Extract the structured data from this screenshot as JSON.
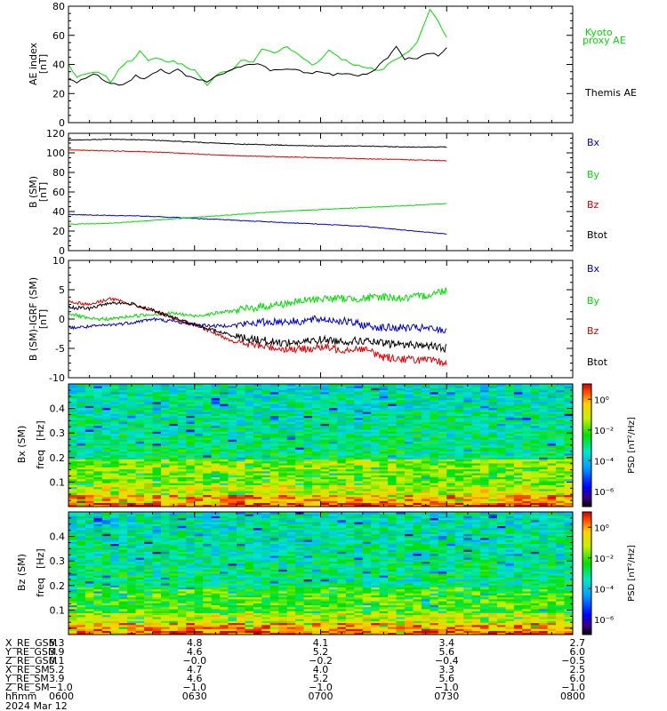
{
  "chart_data": [
    {
      "type": "line",
      "panel": "ae",
      "ylabel": "AE index",
      "yunit": "[nT]",
      "ylim": [
        0,
        80
      ],
      "yticks": [
        0,
        20,
        40,
        60,
        80
      ],
      "series": [
        {
          "name": "Kyoto",
          "name_line2": "proxy AE",
          "color": "#00dd00",
          "x": [
            0,
            2,
            5,
            8,
            10,
            12,
            13.5,
            15,
            17,
            19,
            21,
            23,
            25,
            27,
            30,
            33,
            36,
            39,
            41,
            43,
            44,
            46,
            49,
            52,
            55,
            58,
            60,
            62,
            65,
            68,
            70,
            72,
            74,
            75,
            76,
            78,
            80,
            83,
            86,
            88,
            90
          ],
          "y": [
            40,
            31,
            34,
            34,
            28,
            36,
            42,
            43,
            49,
            42,
            45,
            42,
            42,
            40,
            36,
            25,
            35,
            36,
            43,
            42,
            41,
            51,
            48,
            52,
            46,
            40,
            43,
            50,
            44,
            40,
            38,
            37,
            36,
            37,
            40,
            44,
            47,
            55,
            78,
            70,
            58
          ]
        },
        {
          "name": "Themis AE",
          "color": "#000000",
          "x": [
            0,
            2,
            4,
            6,
            8,
            10,
            12,
            14,
            16,
            18,
            20,
            22,
            24,
            26,
            28,
            30,
            33,
            36,
            39,
            42,
            45,
            48,
            51,
            54,
            57,
            60,
            63,
            66,
            69,
            72,
            74,
            76,
            78,
            80,
            83,
            86,
            88,
            90
          ],
          "y": [
            30,
            28,
            30,
            34,
            30,
            27,
            26,
            28,
            32,
            30,
            33,
            36,
            34,
            37,
            32,
            30,
            28,
            33,
            36,
            40,
            41,
            36,
            37,
            36,
            34,
            35,
            33,
            34,
            32,
            34,
            40,
            45,
            52,
            44,
            44,
            48,
            46,
            52
          ]
        }
      ]
    },
    {
      "type": "line",
      "panel": "bsm",
      "ylabel": "B (SM)",
      "yunit": "[nT]",
      "ylim": [
        0,
        120
      ],
      "yticks": [
        0,
        20,
        40,
        60,
        80,
        100,
        120
      ],
      "series": [
        {
          "name": "Bx",
          "color": "#0000cc",
          "x": [
            0,
            10,
            20,
            30,
            40,
            50,
            60,
            70,
            80,
            90
          ],
          "y": [
            37,
            36,
            35,
            33,
            31,
            29,
            27,
            25,
            21,
            17
          ]
        },
        {
          "name": "By",
          "color": "#00dd00",
          "x": [
            0,
            10,
            20,
            30,
            40,
            50,
            60,
            70,
            80,
            90
          ],
          "y": [
            27,
            28,
            31,
            34,
            37,
            40,
            42,
            44,
            46,
            48
          ]
        },
        {
          "name": "Bz",
          "color": "#dd0000",
          "x": [
            0,
            10,
            20,
            30,
            40,
            50,
            60,
            70,
            80,
            90
          ],
          "y": [
            103,
            102,
            101,
            99,
            97,
            96,
            95,
            94,
            93,
            92
          ]
        },
        {
          "name": "Btot",
          "color": "#000000",
          "x": [
            0,
            10,
            20,
            30,
            40,
            50,
            60,
            70,
            80,
            90
          ],
          "y": [
            113,
            114,
            113,
            111,
            109,
            108,
            107,
            107,
            106,
            106
          ]
        }
      ]
    },
    {
      "type": "line",
      "panel": "dbsm",
      "ylabel": "B (SM)-IGRF (SM)",
      "yunit": "[nT]",
      "ylim": [
        -10,
        10
      ],
      "yticks": [
        -10,
        -5,
        0,
        5,
        10
      ],
      "series": [
        {
          "name": "Bx",
          "color": "#0000cc",
          "x": [
            0,
            5,
            10,
            15,
            20,
            25,
            30,
            35,
            40,
            45,
            50,
            55,
            60,
            65,
            70,
            75,
            80,
            85,
            90
          ],
          "y": [
            -1.5,
            -1.3,
            -1,
            -0.6,
            0,
            -0.4,
            -0.9,
            -1.2,
            -1,
            -0.6,
            -0.4,
            -0.4,
            0,
            -0.3,
            -1.0,
            -1.5,
            -1.5,
            -1.6,
            -2
          ]
        },
        {
          "name": "By",
          "color": "#00dd00",
          "x": [
            0,
            5,
            10,
            15,
            20,
            25,
            30,
            35,
            40,
            45,
            50,
            55,
            60,
            65,
            70,
            75,
            80,
            85,
            90
          ],
          "y": [
            1,
            0,
            0,
            0.5,
            0.8,
            1,
            0.5,
            1,
            1.5,
            2,
            2.5,
            3,
            3.5,
            3.5,
            3.5,
            3.8,
            3.5,
            4,
            5
          ]
        },
        {
          "name": "Bz",
          "color": "#dd0000",
          "x": [
            0,
            5,
            10,
            15,
            20,
            25,
            30,
            35,
            40,
            45,
            50,
            55,
            60,
            65,
            70,
            75,
            80,
            85,
            90
          ],
          "y": [
            3,
            2.5,
            3.5,
            2.5,
            1.5,
            0,
            -1,
            -2.5,
            -4,
            -4.5,
            -5,
            -5.2,
            -4.8,
            -5.2,
            -5,
            -6.5,
            -6.8,
            -7,
            -7.5
          ]
        },
        {
          "name": "Btot",
          "color": "#000000",
          "x": [
            0,
            5,
            10,
            15,
            20,
            25,
            30,
            35,
            40,
            45,
            50,
            55,
            60,
            65,
            70,
            75,
            80,
            85,
            90
          ],
          "y": [
            2,
            1.8,
            2.8,
            2.6,
            1.5,
            0.2,
            -1,
            -2,
            -3,
            -3.5,
            -4,
            -4,
            -3.5,
            -3.8,
            -3.7,
            -4.2,
            -4.3,
            -4.5,
            -5
          ]
        }
      ]
    },
    {
      "type": "heatmap",
      "panel": "bxspec",
      "ylabel": "Bx (SM)",
      "ylabel2": "freq",
      "yunit": "[Hz]",
      "ylim": [
        0,
        0.5
      ],
      "yticks": [
        "0.1",
        "0.2",
        "0.3",
        "0.4"
      ],
      "ytick_values": [
        0.1,
        0.2,
        0.3,
        0.4
      ],
      "colorbar_label": "PSD",
      "colorbar_unit": "[nT²/Hz]",
      "colorbar_ticks": [
        "10⁰",
        "10⁻²",
        "10⁻⁴",
        "10⁻⁶"
      ],
      "colorbar_tick_exponents": [
        0,
        -2,
        -4,
        -6
      ],
      "colorbar_range": [
        -7,
        1
      ]
    },
    {
      "type": "heatmap",
      "panel": "bzspec",
      "ylabel": "Bz (SM)",
      "ylabel2": "freq",
      "yunit": "[Hz]",
      "ylim": [
        0,
        0.5
      ],
      "yticks": [
        "0.1",
        "0.2",
        "0.3",
        "0.4"
      ],
      "ytick_values": [
        0.1,
        0.2,
        0.3,
        0.4
      ],
      "colorbar_label": "PSD",
      "colorbar_unit": "[nT²/Hz]",
      "colorbar_ticks": [
        "10⁰",
        "10⁻²",
        "10⁻⁴",
        "10⁻⁶"
      ],
      "colorbar_tick_exponents": [
        0,
        -2,
        -4,
        -6
      ],
      "colorbar_range": [
        -7,
        1
      ]
    }
  ],
  "xaxis": {
    "range": [
      0,
      120
    ],
    "label_rows": [
      {
        "name": "X_RE_GSM",
        "values": [
          "5.3",
          "4.8",
          "4.1",
          "3.4",
          "2.7"
        ]
      },
      {
        "name": "Y_RE_GSM",
        "values": [
          "3.9",
          "4.6",
          "5.2",
          "5.6",
          "6.0"
        ]
      },
      {
        "name": "Z_RE_GSM",
        "values": [
          "0.1",
          "−0.0",
          "−0.2",
          "−0.4",
          "−0.5"
        ]
      },
      {
        "name": "X_RE_SM",
        "values": [
          "5.2",
          "4.7",
          "4.0",
          "3.3",
          "2.5"
        ]
      },
      {
        "name": "Y_RE_SM",
        "values": [
          "3.9",
          "4.6",
          "5.2",
          "5.6",
          "6.0"
        ]
      },
      {
        "name": "Z_RE_SM",
        "values": [
          "−1.0",
          "−1.0",
          "−1.0",
          "−1.0",
          "−1.0"
        ]
      },
      {
        "name": "hhmm",
        "values": [
          "0600",
          "0630",
          "0700",
          "0730",
          "0800"
        ]
      }
    ],
    "tick_minutes": [
      0,
      30,
      60,
      90,
      120
    ],
    "date": "2024 Mar 12"
  }
}
